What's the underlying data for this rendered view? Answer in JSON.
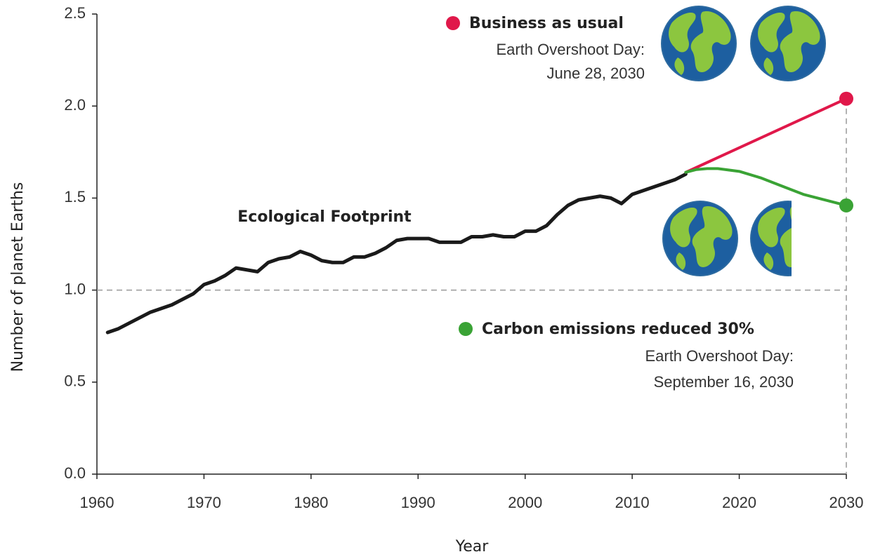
{
  "chart_data": {
    "type": "line",
    "x_label": "Year",
    "y_label": "Number of planet Earths",
    "xlim": [
      1960,
      2030
    ],
    "xticks": [
      1960,
      1970,
      1980,
      1990,
      2000,
      2010,
      2020,
      2030
    ],
    "ylim": [
      0,
      2.5
    ],
    "yticks": [
      {
        "value": 0,
        "label": "0.0"
      },
      0.5,
      {
        "value": 1,
        "label": "1.0"
      },
      1.5,
      {
        "value": 2,
        "label": "2.0"
      },
      2.5
    ],
    "reference_line": 1,
    "series": [
      {
        "name": "Ecological Footprint",
        "color": "#1a1a1a",
        "x": [
          1961,
          1962,
          1963,
          1964,
          1965,
          1966,
          1967,
          1968,
          1969,
          1970,
          1971,
          1972,
          1973,
          1974,
          1975,
          1976,
          1977,
          1978,
          1979,
          1980,
          1981,
          1982,
          1983,
          1984,
          1985,
          1986,
          1987,
          1988,
          1989,
          1990,
          1991,
          1992,
          1993,
          1994,
          1995,
          1996,
          1997,
          1998,
          1999,
          2000,
          2001,
          2002,
          2003,
          2004,
          2005,
          2006,
          2007,
          2008,
          2009,
          2010,
          2011,
          2012,
          2013,
          2014,
          2015
        ],
        "values": [
          0.77,
          0.79,
          0.82,
          0.85,
          0.88,
          0.9,
          0.92,
          0.95,
          0.98,
          1.03,
          1.05,
          1.08,
          1.12,
          1.11,
          1.1,
          1.15,
          1.17,
          1.18,
          1.21,
          1.19,
          1.16,
          1.15,
          1.15,
          1.18,
          1.18,
          1.2,
          1.23,
          1.27,
          1.28,
          1.28,
          1.28,
          1.26,
          1.26,
          1.26,
          1.29,
          1.29,
          1.3,
          1.29,
          1.29,
          1.32,
          1.32,
          1.35,
          1.41,
          1.46,
          1.49,
          1.5,
          1.51,
          1.5,
          1.47,
          1.52,
          1.54,
          1.56,
          1.58,
          1.6,
          1.63
        ]
      },
      {
        "name": "Business as usual",
        "color": "#e0184a",
        "annotation": [
          "Earth Overshoot Day:",
          "June 28, 2030"
        ],
        "x": [
          2015,
          2030
        ],
        "values": [
          1.64,
          2.04
        ]
      },
      {
        "name": "Carbon emissions reduced 30%",
        "color": "#3aa335",
        "annotation": [
          "Earth Overshoot Day:",
          "September 16, 2030"
        ],
        "x": [
          2015,
          2016,
          2017,
          2018,
          2020,
          2022,
          2024,
          2026,
          2028,
          2030
        ],
        "values": [
          1.64,
          1.655,
          1.66,
          1.66,
          1.645,
          1.61,
          1.565,
          1.52,
          1.49,
          1.46
        ]
      }
    ]
  }
}
